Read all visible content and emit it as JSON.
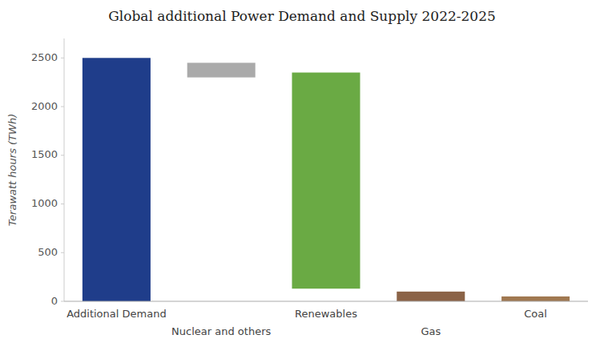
{
  "chart_data": {
    "type": "bar",
    "title": "Global additional Power Demand and Supply 2022-2025",
    "y_label": "Terawatt hours (TWh)",
    "categories": [
      "Additional Demand",
      "Nuclear and others",
      "Renewables",
      "Gas",
      "Coal"
    ],
    "values": [
      2500,
      2450,
      2350,
      100,
      50
    ],
    "bottoms": [
      0,
      2300,
      130,
      0,
      0
    ],
    "colors": [
      "#1f3d8a",
      "#aaaaaa",
      "#6aaa44",
      "#8b6347",
      "#a07850"
    ],
    "ylim": [
      0,
      2700
    ],
    "yticks": [
      0,
      500,
      1000,
      1500,
      2000,
      2500
    ],
    "grid": false
  }
}
